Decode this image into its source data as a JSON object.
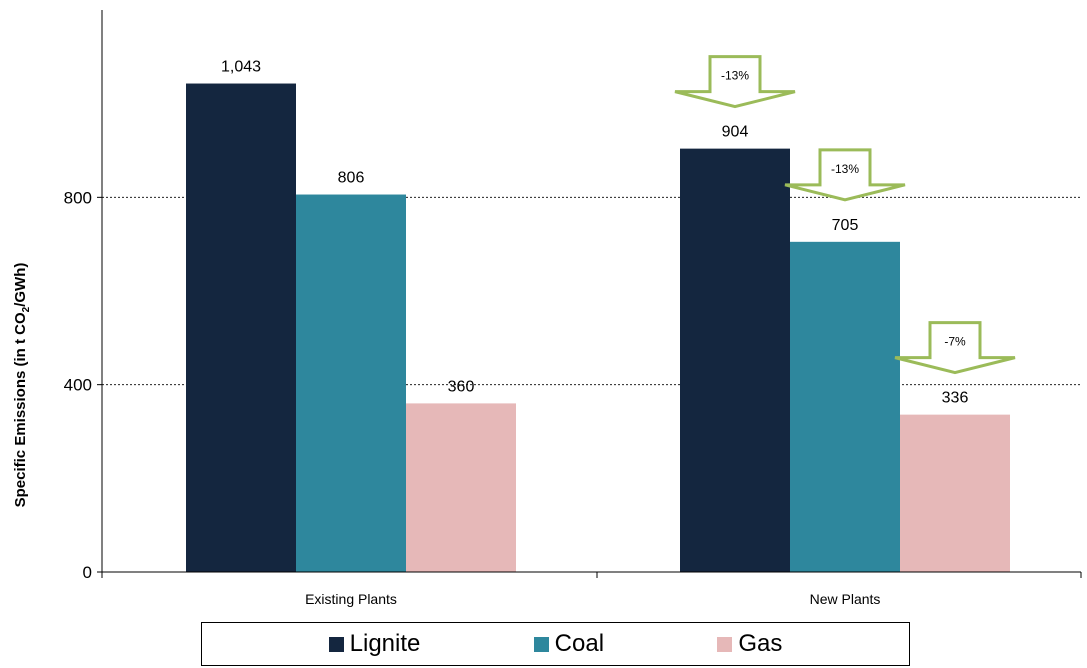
{
  "chart_data": {
    "type": "bar",
    "ylabel_parts": [
      "Specific Emissions (in t CO",
      "2",
      "/GWh)"
    ],
    "categories": [
      "Existing Plants",
      "New Plants"
    ],
    "series": [
      {
        "name": "Lignite",
        "color": "#14263f",
        "values": [
          1043,
          904
        ],
        "labels": [
          "1,043",
          "904"
        ]
      },
      {
        "name": "Coal",
        "color": "#2e879d",
        "values": [
          806,
          705
        ],
        "labels": [
          "806",
          "705"
        ]
      },
      {
        "name": "Gas",
        "color": "#e6b8b8",
        "values": [
          360,
          336
        ],
        "labels": [
          "360",
          "336"
        ]
      }
    ],
    "ylim": [
      0,
      1200
    ],
    "yticks": [
      0,
      400,
      800
    ],
    "ytick_labels": [
      "0",
      "400",
      "800"
    ],
    "grid": "dashed horizontal at 400 and 800",
    "legend_position": "bottom",
    "annotations": [
      {
        "series": "Lignite",
        "category": "New Plants",
        "text": "-13%"
      },
      {
        "series": "Coal",
        "category": "New Plants",
        "text": "-13%"
      },
      {
        "series": "Gas",
        "category": "New Plants",
        "text": "-7%"
      }
    ],
    "arrow_color": "#9bbb59"
  }
}
